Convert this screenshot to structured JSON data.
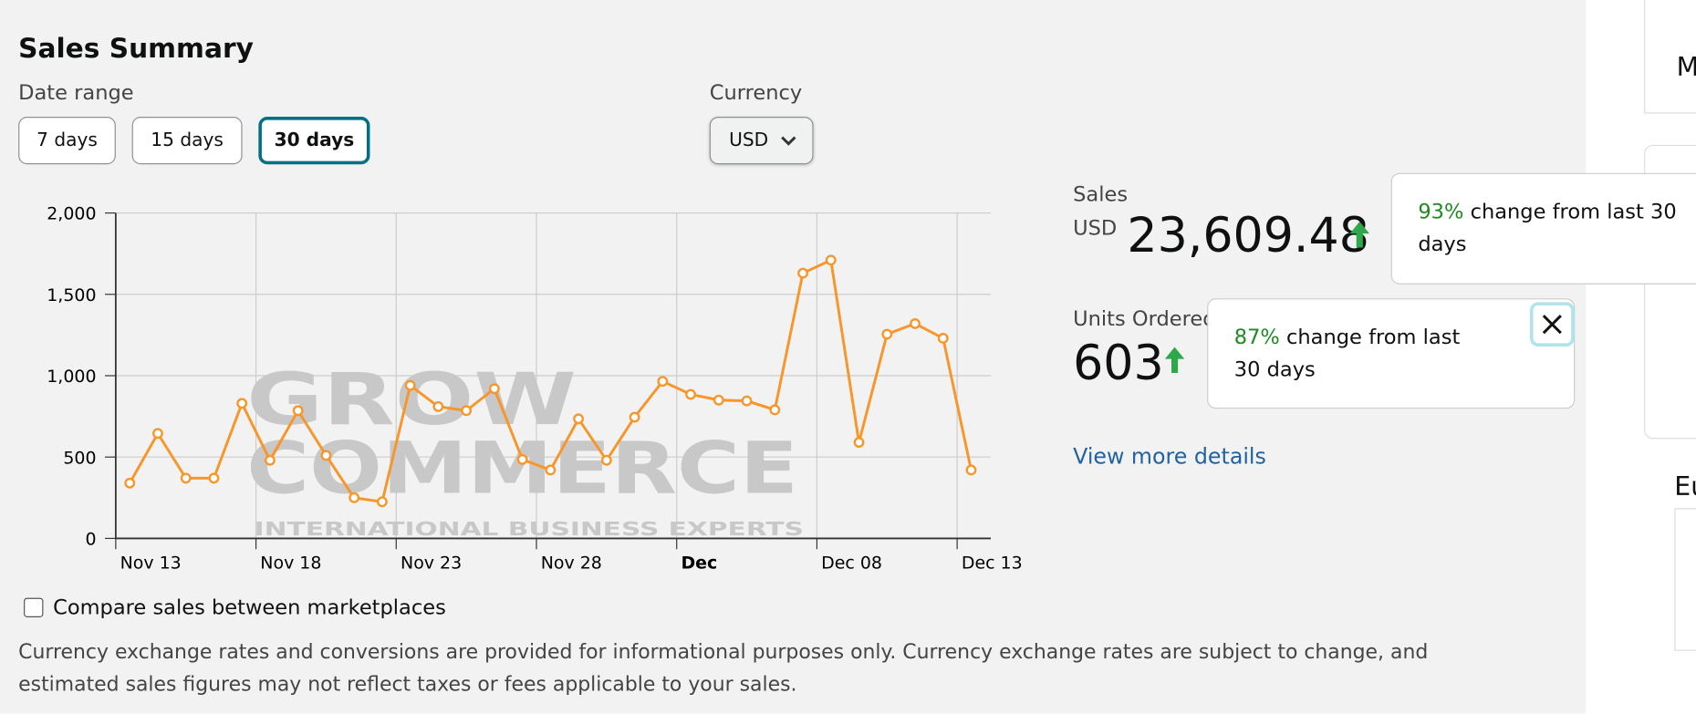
{
  "header": {
    "title": "Sales Summary"
  },
  "date_range": {
    "label": "Date range",
    "options": [
      "7 days",
      "15 days",
      "30 days"
    ]
  },
  "currency": {
    "label": "Currency",
    "selected": "USD"
  },
  "watermark": {
    "line1": "GROW",
    "line2": "COMMERCE",
    "line3": "INTERNATIONAL BUSINESS EXPERTS"
  },
  "chart_data": {
    "type": "line",
    "categories": [
      "Nov 13",
      null,
      null,
      null,
      null,
      "Nov 18",
      null,
      null,
      null,
      null,
      "Nov 23",
      null,
      null,
      null,
      null,
      "Nov 28",
      null,
      null,
      null,
      null,
      "Dec",
      null,
      null,
      null,
      null,
      "Dec 08",
      null,
      null,
      null,
      null,
      "Dec 13"
    ],
    "series": [
      {
        "name": "Sales",
        "color": "#f7962a",
        "values": [
          340,
          645,
          370,
          370,
          830,
          480,
          785,
          510,
          250,
          225,
          940,
          810,
          785,
          920,
          485,
          420,
          735,
          480,
          745,
          965,
          885,
          850,
          845,
          790,
          1630,
          1710,
          590,
          1255,
          1320,
          1230,
          420
        ]
      }
    ],
    "ylim": [
      0,
      2000
    ],
    "yticks": [
      0,
      500,
      {
        "value": 1000,
        "label": "1,000"
      },
      {
        "value": 1500,
        "label": "1,500"
      },
      {
        "value": 2000,
        "label": "2,000"
      }
    ],
    "grid": true
  },
  "sales": {
    "label": "Sales",
    "currency": "USD",
    "value": "23,609.48"
  },
  "units": {
    "label": "Units Ordered",
    "value": "603"
  },
  "tooltips": [
    {
      "percent": "93%",
      "text": "change from last 30 days"
    },
    {
      "percent": "87%",
      "text": "change from last 30 days"
    }
  ],
  "link": "View more details",
  "checkbox": "Compare sales between marketplaces",
  "disclaimer": "Currency exchange rates and conversions are provided for informational purposes only. Currency exchange rates are subject to change, and estimated sales figures may not reflect taxes or fees applicable to your sales.",
  "side": {
    "letter1": "M",
    "letter2": "Eu"
  }
}
